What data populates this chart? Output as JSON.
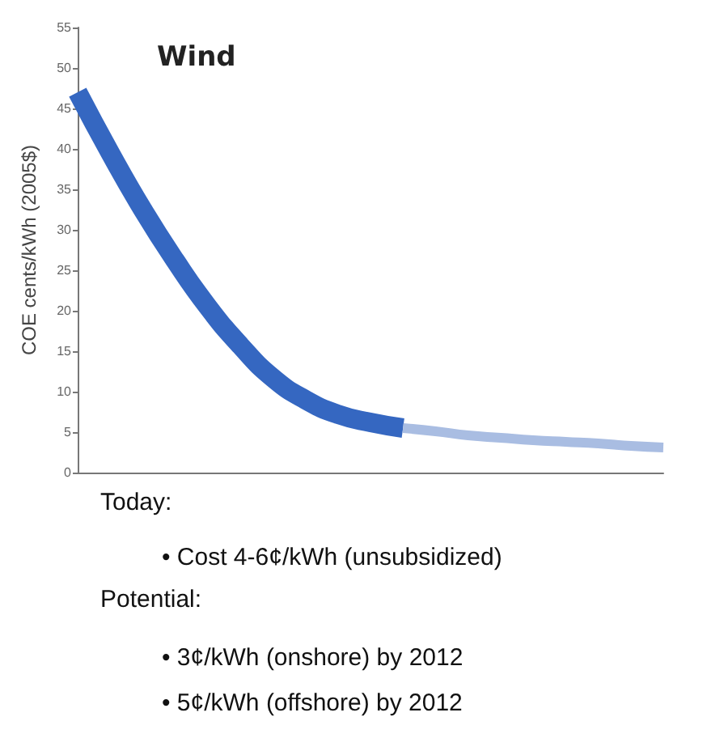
{
  "chart_data": {
    "type": "line",
    "title": "Wind",
    "ylabel": "COE cents/kWh (2005$)",
    "categories": [
      null,
      null,
      null,
      null,
      null,
      null,
      null,
      null,
      null,
      null,
      null,
      null,
      null,
      null,
      null,
      null,
      null,
      null,
      null
    ],
    "ylim": [
      0,
      55
    ],
    "yticks": [
      0,
      5,
      10,
      15,
      20,
      25,
      30,
      35,
      40,
      45,
      50,
      55
    ],
    "grid": false,
    "marker": "none",
    "line_style": "solid",
    "series": [
      {
        "color": "#3567c1",
        "values": [
          47,
          39.5,
          32.5,
          26.2,
          20.5,
          15.7,
          11.7,
          9,
          7.2,
          6.2,
          5.5,
          null,
          null,
          null,
          null,
          null,
          null,
          null,
          null
        ]
      },
      {
        "color": "#a9bde2",
        "values": [
          null,
          null,
          null,
          null,
          null,
          null,
          null,
          null,
          null,
          null,
          5.5,
          5.1,
          4.6,
          4.3,
          4,
          3.8,
          3.6,
          3.3,
          3.1
        ]
      }
    ],
    "annotations": [
      "Today:",
      "• Cost 4-6¢/kWh (unsubsidized)",
      "Potential:",
      "• 3¢/kWh (onshore) by 2012",
      "• 5¢/kWh (offshore) by 2012"
    ]
  }
}
